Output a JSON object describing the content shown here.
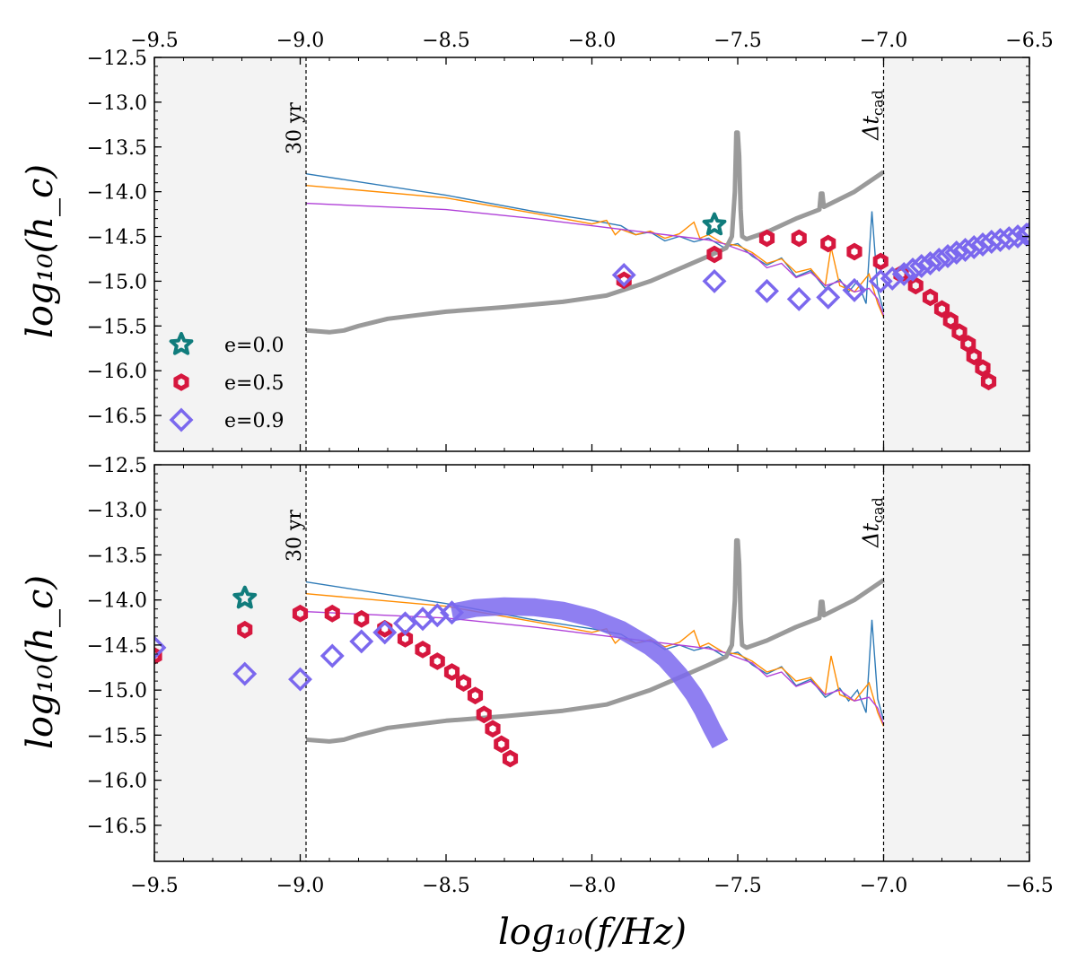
{
  "chart_data": {
    "type": "scatter",
    "x_label": "log₁₀(f/Hz)",
    "y_label": "log₁₀(h_c)",
    "xlim": [
      -9.5,
      -6.5
    ],
    "ylim": [
      -16.9,
      -12.5
    ],
    "x_ticks": [
      -9.5,
      -9.0,
      -8.5,
      -8.0,
      -7.5,
      -7.0,
      -6.5
    ],
    "x_tick_labels": [
      "−9.5",
      "−9.0",
      "−8.5",
      "−8.0",
      "−7.5",
      "−7.0",
      "−6.5"
    ],
    "y_ticks": [
      -12.5,
      -13.0,
      -13.5,
      -14.0,
      -14.5,
      -15.0,
      -15.5,
      -16.0,
      -16.5
    ],
    "y_tick_labels": [
      "−12.5",
      "−13.0",
      "−13.5",
      "−14.0",
      "−14.5",
      "−15.0",
      "−15.5",
      "−16.0",
      "−16.5"
    ],
    "vline_left_x": -8.98,
    "vline_right_x": -7.0,
    "vline_left_label": "30 yr",
    "vline_right_label": "Δt",
    "vline_right_label_sub": "cad",
    "legend": {
      "position": "lower-left",
      "entries": [
        {
          "label": "e=0.0",
          "marker": "star",
          "color": "#107c7c"
        },
        {
          "label": "e=0.5",
          "marker": "hexagon",
          "color": "#d6173e"
        },
        {
          "label": "e=0.9",
          "marker": "diamond",
          "color": "#7b68ee"
        }
      ]
    },
    "colors": {
      "shade": "#f3f3f3",
      "sensitivity": "#9a9a9a",
      "noise_blue": "#2f7bb7",
      "noise_orange": "#ff8c00",
      "noise_purple": "#b040d8",
      "e00": "#107c7c",
      "e05": "#d6173e",
      "e09": "#7b68ee"
    },
    "sensitivity_curve": [
      [
        -8.98,
        -15.55
      ],
      [
        -8.9,
        -15.57
      ],
      [
        -8.85,
        -15.55
      ],
      [
        -8.8,
        -15.5
      ],
      [
        -8.7,
        -15.42
      ],
      [
        -8.6,
        -15.38
      ],
      [
        -8.5,
        -15.34
      ],
      [
        -8.3,
        -15.29
      ],
      [
        -8.1,
        -15.23
      ],
      [
        -7.95,
        -15.16
      ],
      [
        -7.8,
        -15.0
      ],
      [
        -7.7,
        -14.86
      ],
      [
        -7.6,
        -14.72
      ],
      [
        -7.54,
        -14.63
      ],
      [
        -7.52,
        -14.5
      ],
      [
        -7.51,
        -14.0
      ],
      [
        -7.505,
        -13.34
      ],
      [
        -7.5,
        -13.34
      ],
      [
        -7.495,
        -13.6
      ],
      [
        -7.49,
        -14.2
      ],
      [
        -7.485,
        -14.5
      ],
      [
        -7.47,
        -14.53
      ],
      [
        -7.4,
        -14.45
      ],
      [
        -7.3,
        -14.3
      ],
      [
        -7.22,
        -14.2
      ],
      [
        -7.215,
        -14.02
      ],
      [
        -7.21,
        -14.02
      ],
      [
        -7.205,
        -14.17
      ],
      [
        -7.1,
        -14.0
      ],
      [
        -7.0,
        -13.78
      ]
    ],
    "noise_curves": [
      {
        "color": "blue",
        "points": [
          [
            -8.98,
            -13.8
          ],
          [
            -8.5,
            -14.04
          ],
          [
            -8.2,
            -14.22
          ],
          [
            -8.0,
            -14.32
          ],
          [
            -7.9,
            -14.38
          ],
          [
            -7.85,
            -14.48
          ],
          [
            -7.8,
            -14.45
          ],
          [
            -7.75,
            -14.55
          ],
          [
            -7.7,
            -14.5
          ],
          [
            -7.65,
            -14.56
          ],
          [
            -7.6,
            -14.52
          ],
          [
            -7.55,
            -14.62
          ],
          [
            -7.5,
            -14.58
          ],
          [
            -7.45,
            -14.72
          ],
          [
            -7.4,
            -14.82
          ],
          [
            -7.35,
            -14.74
          ],
          [
            -7.3,
            -14.95
          ],
          [
            -7.25,
            -14.88
          ],
          [
            -7.2,
            -15.08
          ],
          [
            -7.15,
            -14.98
          ],
          [
            -7.12,
            -15.12
          ],
          [
            -7.09,
            -15.0
          ],
          [
            -7.06,
            -15.25
          ],
          [
            -7.04,
            -14.22
          ],
          [
            -7.02,
            -15.1
          ],
          [
            -7.0,
            -15.33
          ]
        ]
      },
      {
        "color": "orange",
        "points": [
          [
            -8.98,
            -13.93
          ],
          [
            -8.5,
            -14.07
          ],
          [
            -8.2,
            -14.24
          ],
          [
            -8.0,
            -14.36
          ],
          [
            -7.95,
            -14.32
          ],
          [
            -7.92,
            -14.48
          ],
          [
            -7.9,
            -14.42
          ],
          [
            -7.85,
            -14.48
          ],
          [
            -7.8,
            -14.44
          ],
          [
            -7.75,
            -14.52
          ],
          [
            -7.7,
            -14.47
          ],
          [
            -7.65,
            -14.34
          ],
          [
            -7.63,
            -14.52
          ],
          [
            -7.6,
            -14.48
          ],
          [
            -7.55,
            -14.58
          ],
          [
            -7.5,
            -14.6
          ],
          [
            -7.45,
            -14.68
          ],
          [
            -7.4,
            -14.8
          ],
          [
            -7.35,
            -14.75
          ],
          [
            -7.3,
            -14.9
          ],
          [
            -7.25,
            -14.86
          ],
          [
            -7.2,
            -15.05
          ],
          [
            -7.18,
            -14.62
          ],
          [
            -7.15,
            -15.05
          ],
          [
            -7.1,
            -15.12
          ],
          [
            -7.05,
            -14.92
          ],
          [
            -7.02,
            -15.25
          ],
          [
            -7.0,
            -15.4
          ]
        ]
      },
      {
        "color": "purple",
        "points": [
          [
            -8.98,
            -14.13
          ],
          [
            -8.5,
            -14.2
          ],
          [
            -8.2,
            -14.3
          ],
          [
            -8.0,
            -14.38
          ],
          [
            -7.9,
            -14.42
          ],
          [
            -7.8,
            -14.46
          ],
          [
            -7.7,
            -14.5
          ],
          [
            -7.6,
            -14.54
          ],
          [
            -7.55,
            -14.58
          ],
          [
            -7.5,
            -14.64
          ],
          [
            -7.45,
            -14.7
          ],
          [
            -7.4,
            -14.85
          ],
          [
            -7.35,
            -14.8
          ],
          [
            -7.3,
            -14.96
          ],
          [
            -7.25,
            -14.9
          ],
          [
            -7.2,
            -15.05
          ],
          [
            -7.15,
            -15.0
          ],
          [
            -7.1,
            -15.12
          ],
          [
            -7.05,
            -15.08
          ],
          [
            -7.02,
            -15.2
          ],
          [
            -7.0,
            -15.38
          ]
        ]
      }
    ],
    "panels": [
      {
        "name": "top",
        "series": [
          {
            "label": "e=0.0",
            "marker": "star",
            "points": [
              [
                -7.58,
                -14.37
              ]
            ]
          },
          {
            "label": "e=0.5",
            "marker": "hexagon",
            "points": [
              [
                -7.89,
                -14.99
              ],
              [
                -7.58,
                -14.7
              ],
              [
                -7.4,
                -14.52
              ],
              [
                -7.29,
                -14.52
              ],
              [
                -7.19,
                -14.58
              ],
              [
                -7.1,
                -14.67
              ],
              [
                -7.01,
                -14.78
              ],
              [
                -6.94,
                -14.92
              ],
              [
                -6.89,
                -15.05
              ],
              [
                -6.84,
                -15.18
              ],
              [
                -6.8,
                -15.31
              ],
              [
                -6.77,
                -15.44
              ],
              [
                -6.74,
                -15.57
              ],
              [
                -6.71,
                -15.7
              ],
              [
                -6.69,
                -15.84
              ],
              [
                -6.66,
                -15.97
              ],
              [
                -6.64,
                -16.12
              ]
            ]
          },
          {
            "label": "e=0.9",
            "marker": "diamond",
            "points": [
              [
                -7.89,
                -14.93
              ],
              [
                -7.58,
                -15.0
              ],
              [
                -7.4,
                -15.11
              ],
              [
                -7.29,
                -15.2
              ],
              [
                -7.19,
                -15.18
              ],
              [
                -7.1,
                -15.1
              ],
              [
                -7.01,
                -15.0
              ],
              [
                -6.97,
                -14.97
              ],
              [
                -6.93,
                -14.92
              ],
              [
                -6.9,
                -14.87
              ],
              [
                -6.87,
                -14.83
              ],
              [
                -6.84,
                -14.8
              ],
              [
                -6.81,
                -14.76
              ],
              [
                -6.78,
                -14.72
              ],
              [
                -6.75,
                -14.68
              ],
              [
                -6.72,
                -14.65
              ],
              [
                -6.69,
                -14.62
              ],
              [
                -6.66,
                -14.59
              ],
              [
                -6.63,
                -14.56
              ],
              [
                -6.6,
                -14.54
              ],
              [
                -6.57,
                -14.52
              ],
              [
                -6.54,
                -14.5
              ],
              [
                -6.51,
                -14.48
              ],
              [
                -6.5,
                -14.47
              ]
            ]
          }
        ]
      },
      {
        "name": "bottom",
        "series": [
          {
            "label": "e=0.0",
            "marker": "star",
            "points": [
              [
                -9.19,
                -13.98
              ]
            ]
          },
          {
            "label": "e=0.5",
            "marker": "hexagon",
            "points": [
              [
                -9.5,
                -14.62
              ],
              [
                -9.19,
                -14.33
              ],
              [
                -9.0,
                -14.15
              ],
              [
                -8.89,
                -14.15
              ],
              [
                -8.79,
                -14.21
              ],
              [
                -8.71,
                -14.32
              ],
              [
                -8.64,
                -14.43
              ],
              [
                -8.58,
                -14.55
              ],
              [
                -8.53,
                -14.68
              ],
              [
                -8.48,
                -14.8
              ],
              [
                -8.44,
                -14.92
              ],
              [
                -8.4,
                -15.06
              ],
              [
                -8.37,
                -15.27
              ],
              [
                -8.34,
                -15.43
              ],
              [
                -8.31,
                -15.6
              ],
              [
                -8.28,
                -15.76
              ]
            ]
          },
          {
            "label": "e=0.9",
            "marker": "diamond",
            "points": [
              [
                -9.5,
                -14.53
              ],
              [
                -9.19,
                -14.82
              ],
              [
                -9.0,
                -14.88
              ],
              [
                -8.89,
                -14.62
              ],
              [
                -8.79,
                -14.46
              ],
              [
                -8.71,
                -14.36
              ],
              [
                -8.64,
                -14.26
              ],
              [
                -8.58,
                -14.21
              ],
              [
                -8.53,
                -14.17
              ],
              [
                -8.48,
                -14.14
              ]
            ]
          },
          {
            "label": "e=0.9 (dense track)",
            "marker": "band",
            "points": [
              [
                -8.48,
                -14.14
              ],
              [
                -8.4,
                -14.09
              ],
              [
                -8.3,
                -14.07
              ],
              [
                -8.2,
                -14.08
              ],
              [
                -8.1,
                -14.12
              ],
              [
                -8.0,
                -14.2
              ],
              [
                -7.9,
                -14.33
              ],
              [
                -7.8,
                -14.52
              ],
              [
                -7.75,
                -14.65
              ],
              [
                -7.7,
                -14.83
              ],
              [
                -7.65,
                -15.05
              ],
              [
                -7.62,
                -15.22
              ],
              [
                -7.59,
                -15.42
              ],
              [
                -7.56,
                -15.6
              ]
            ]
          }
        ]
      }
    ]
  }
}
